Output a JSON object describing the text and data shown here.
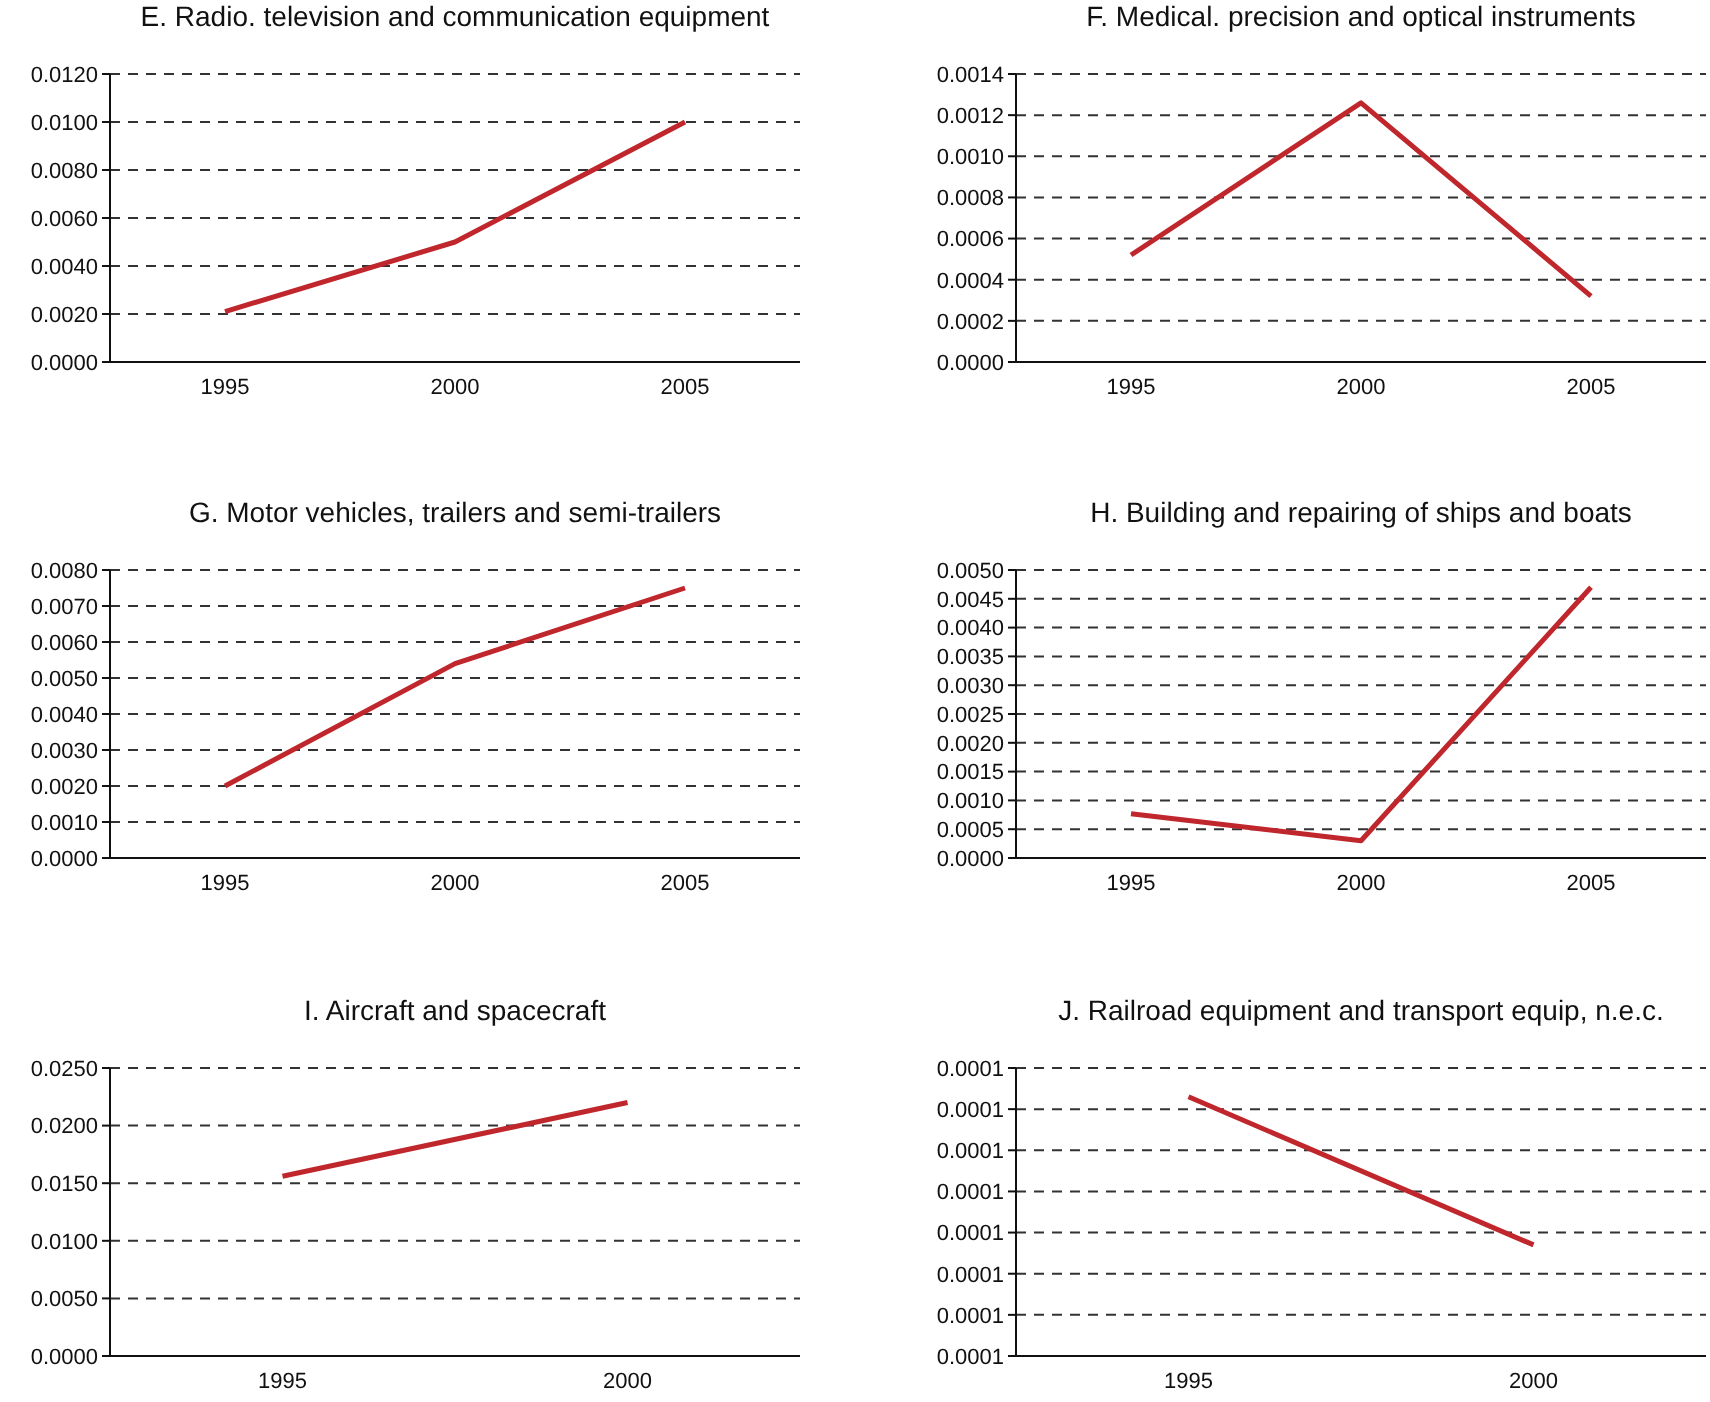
{
  "chart_data": [
    {
      "type": "line",
      "title": "E. Radio. television and communication equipment",
      "categories": [
        "1995",
        "2000",
        "2005"
      ],
      "marker": "none",
      "grid": "y",
      "series": [
        {
          "color": "#c0272d",
          "values": [
            0.0021,
            0.005,
            0.01
          ]
        }
      ],
      "ylim": [
        0,
        0.012
      ],
      "yticks": [
        {
          "value": 0,
          "label": "0.0000"
        },
        {
          "value": 0.002,
          "label": "0.0020"
        },
        {
          "value": 0.004,
          "label": "0.0040"
        },
        {
          "value": 0.006,
          "label": "0.0060"
        },
        {
          "value": 0.008,
          "label": "0.0080"
        },
        {
          "value": 0.01,
          "label": "0.0100"
        },
        {
          "value": 0.012,
          "label": "0.0120"
        }
      ]
    },
    {
      "type": "line",
      "title": "F. Medical. precision and optical instruments",
      "categories": [
        "1995",
        "2000",
        "2005"
      ],
      "marker": "none",
      "grid": "y",
      "series": [
        {
          "color": "#c0272d",
          "values": [
            0.00052,
            0.00126,
            0.00032
          ]
        }
      ],
      "ylim": [
        0,
        0.0014
      ],
      "yticks": [
        {
          "value": 0,
          "label": "0.0000"
        },
        {
          "value": 0.0002,
          "label": "0.0002"
        },
        {
          "value": 0.0004,
          "label": "0.0004"
        },
        {
          "value": 0.0006,
          "label": "0.0006"
        },
        {
          "value": 0.0008,
          "label": "0.0008"
        },
        {
          "value": 0.001,
          "label": "0.0010"
        },
        {
          "value": 0.0012,
          "label": "0.0012"
        },
        {
          "value": 0.0014,
          "label": "0.0014"
        }
      ]
    },
    {
      "type": "line",
      "title": "G. Motor vehicles, trailers and semi-trailers",
      "categories": [
        "1995",
        "2000",
        "2005"
      ],
      "marker": "none",
      "grid": "y",
      "series": [
        {
          "color": "#c0272d",
          "values": [
            0.002,
            0.0054,
            0.0075
          ]
        }
      ],
      "ylim": [
        0,
        0.008
      ],
      "yticks": [
        {
          "value": 0,
          "label": "0.0000"
        },
        {
          "value": 0.001,
          "label": "0.0010"
        },
        {
          "value": 0.002,
          "label": "0.0020"
        },
        {
          "value": 0.003,
          "label": "0.0030"
        },
        {
          "value": 0.004,
          "label": "0.0040"
        },
        {
          "value": 0.005,
          "label": "0.0050"
        },
        {
          "value": 0.006,
          "label": "0.0060"
        },
        {
          "value": 0.007,
          "label": "0.0070"
        },
        {
          "value": 0.008,
          "label": "0.0080"
        }
      ]
    },
    {
      "type": "line",
      "title": "H. Building and repairing of ships and boats",
      "categories": [
        "1995",
        "2000",
        "2005"
      ],
      "marker": "none",
      "grid": "y",
      "series": [
        {
          "color": "#c0272d",
          "values": [
            0.00077,
            0.0003,
            0.0047
          ]
        }
      ],
      "ylim": [
        0,
        0.005
      ],
      "yticks": [
        {
          "value": 0,
          "label": "0.0000"
        },
        {
          "value": 0.0005,
          "label": "0.0005"
        },
        {
          "value": 0.001,
          "label": "0.0010"
        },
        {
          "value": 0.0015,
          "label": "0.0015"
        },
        {
          "value": 0.002,
          "label": "0.0020"
        },
        {
          "value": 0.0025,
          "label": "0.0025"
        },
        {
          "value": 0.003,
          "label": "0.0030"
        },
        {
          "value": 0.0035,
          "label": "0.0035"
        },
        {
          "value": 0.004,
          "label": "0.0040"
        },
        {
          "value": 0.0045,
          "label": "0.0045"
        },
        {
          "value": 0.005,
          "label": "0.0050"
        }
      ]
    },
    {
      "type": "line",
      "title": "I. Aircraft and spacecraft",
      "categories": [
        "1995",
        "2000"
      ],
      "marker": "none",
      "grid": "y",
      "series": [
        {
          "color": "#c0272d",
          "values": [
            0.0156,
            0.022
          ]
        }
      ],
      "ylim": [
        0,
        0.025
      ],
      "yticks": [
        {
          "value": 0,
          "label": "0.0000"
        },
        {
          "value": 0.005,
          "label": "0.0050"
        },
        {
          "value": 0.01,
          "label": "0.0100"
        },
        {
          "value": 0.015,
          "label": "0.0150"
        },
        {
          "value": 0.02,
          "label": "0.0200"
        },
        {
          "value": 0.025,
          "label": "0.0250"
        }
      ]
    },
    {
      "type": "line",
      "title": "J. Railroad equipment and transport equip, n.e.c.",
      "categories": [
        "1995",
        "2000"
      ],
      "marker": "none",
      "grid": "y",
      "series": [
        {
          "color": "#c0272d",
          "values": [
            0.000133,
            9.7e-05
          ]
        }
      ],
      "ylim": [
        7e-05,
        0.00014
      ],
      "yticks": [
        {
          "value": 7e-05,
          "label": "0.0001"
        },
        {
          "value": 8e-05,
          "label": "0.0001"
        },
        {
          "value": 9e-05,
          "label": "0.0001"
        },
        {
          "value": 0.0001,
          "label": "0.0001"
        },
        {
          "value": 0.00011,
          "label": "0.0001"
        },
        {
          "value": 0.00012,
          "label": "0.0001"
        },
        {
          "value": 0.00013,
          "label": "0.0001"
        },
        {
          "value": 0.00014,
          "label": "0.0001"
        }
      ]
    }
  ]
}
